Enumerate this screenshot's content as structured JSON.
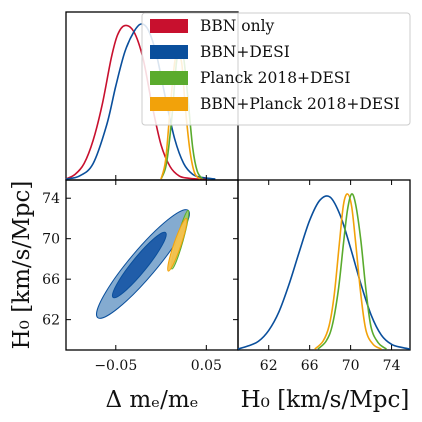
{
  "chart_data": {
    "type": "corner",
    "legend": {
      "placement": "top-right",
      "entries": [
        {
          "label": "BBN only",
          "color": "#c8102e"
        },
        {
          "label": "BBN+DESI",
          "color": "#0a4f9c"
        },
        {
          "label": "Planck 2018+DESI",
          "color": "#5aab2d"
        },
        {
          "label": "BBN+Planck 2018+DESI",
          "color": "#f2a20a"
        }
      ]
    },
    "params": {
      "dme": {
        "label": "Δ mₑ/mₑ",
        "range": [
          -0.105,
          0.085
        ],
        "ticks": [
          -0.05,
          0.05
        ],
        "tick_labels": [
          "−0.05",
          "0.05"
        ]
      },
      "H0": {
        "label": "H₀ [km/s/Mpc]",
        "range": [
          59.0,
          75.8
        ],
        "ticks": [
          62,
          66,
          70,
          74
        ],
        "tick_labels": [
          "62",
          "66",
          "70",
          "74"
        ]
      }
    },
    "panels": [
      {
        "id": "dme_1d",
        "type": "line",
        "xlabel": "",
        "ylabel": "",
        "series": [
          {
            "color": "#c8102e",
            "x": [
              -0.105,
              -0.095,
              -0.085,
              -0.075,
              -0.065,
              -0.055,
              -0.048,
              -0.04,
              -0.03,
              -0.02,
              -0.01,
              0.0,
              0.01,
              0.02,
              0.03,
              0.04,
              0.05
            ],
            "y": [
              0.0,
              0.03,
              0.1,
              0.25,
              0.48,
              0.78,
              0.93,
              0.99,
              0.95,
              0.78,
              0.48,
              0.22,
              0.08,
              0.02,
              0.005,
              0.0,
              0.0
            ]
          },
          {
            "color": "#0a4f9c",
            "x": [
              -0.105,
              -0.09,
              -0.075,
              -0.06,
              -0.05,
              -0.04,
              -0.03,
              -0.022,
              -0.014,
              -0.005,
              0.005,
              0.015,
              0.025,
              0.035,
              0.045,
              0.06
            ],
            "y": [
              0.0,
              0.02,
              0.1,
              0.35,
              0.6,
              0.82,
              0.95,
              1.0,
              0.96,
              0.8,
              0.52,
              0.26,
              0.1,
              0.03,
              0.01,
              0.0
            ]
          },
          {
            "color": "#5aab2d",
            "x": [
              0.0,
              0.006,
              0.012,
              0.017,
              0.021,
              0.025,
              0.03,
              0.035,
              0.04,
              0.046
            ],
            "y": [
              0.0,
              0.1,
              0.4,
              0.75,
              0.82,
              0.78,
              0.5,
              0.2,
              0.05,
              0.0
            ]
          },
          {
            "color": "#f2a20a",
            "x": [
              0.0,
              0.005,
              0.01,
              0.015,
              0.019,
              0.023,
              0.027,
              0.032,
              0.037,
              0.043
            ],
            "y": [
              0.0,
              0.12,
              0.45,
              0.75,
              0.8,
              0.74,
              0.45,
              0.18,
              0.04,
              0.0
            ]
          }
        ]
      },
      {
        "id": "h0_1d",
        "type": "line",
        "xlabel": "H₀ [km/s/Mpc]",
        "ylabel": "",
        "series": [
          {
            "color": "#0a4f9c",
            "x": [
              59.0,
              60.0,
              61.0,
              62.0,
              63.0,
              64.0,
              65.0,
              66.0,
              67.0,
              68.0,
              69.0,
              70.0,
              71.0,
              72.0,
              73.0,
              74.0,
              75.0,
              75.8
            ],
            "y": [
              0.0,
              0.02,
              0.05,
              0.12,
              0.24,
              0.42,
              0.63,
              0.83,
              0.96,
              0.98,
              0.86,
              0.65,
              0.42,
              0.22,
              0.09,
              0.03,
              0.01,
              0.0
            ]
          },
          {
            "color": "#f2a20a",
            "x": [
              66.5,
              67.3,
              67.9,
              68.4,
              68.9,
              69.3,
              69.7,
              70.1,
              70.5,
              71.0,
              71.5,
              72.2,
              73.0
            ],
            "y": [
              0.0,
              0.05,
              0.15,
              0.35,
              0.68,
              0.93,
              1.0,
              0.92,
              0.68,
              0.35,
              0.12,
              0.03,
              0.0
            ]
          },
          {
            "color": "#5aab2d",
            "x": [
              66.8,
              67.6,
              68.2,
              68.8,
              69.3,
              69.7,
              70.1,
              70.5,
              71.0,
              71.5,
              72.0,
              72.7,
              73.5
            ],
            "y": [
              0.0,
              0.05,
              0.15,
              0.38,
              0.68,
              0.9,
              1.0,
              0.93,
              0.7,
              0.38,
              0.14,
              0.04,
              0.0
            ]
          }
        ]
      },
      {
        "id": "dme_h0_2d",
        "type": "scatter",
        "xlabel": "Δ mₑ/mₑ",
        "ylabel": "H₀ [km/s/Mpc]",
        "contours": [
          {
            "color": "#0a4f9c",
            "level": "95%",
            "center": [
              -0.022,
              67.5
            ],
            "ellipse": [
              [
                -0.07,
                62.2
              ],
              [
                0.03,
                72.8
              ]
            ]
          },
          {
            "color": "#0a4f9c",
            "level": "68%",
            "center": [
              -0.022,
              67.5
            ],
            "ellipse": [
              [
                -0.053,
                64.2
              ],
              [
                0.005,
                70.6
              ]
            ]
          },
          {
            "color": "#5aab2d",
            "level": "95%",
            "center": [
              0.021,
              70.0
            ],
            "ellipse": [
              [
                0.012,
                67.0
              ],
              [
                0.03,
                72.8
              ]
            ]
          },
          {
            "color": "#f2a20a",
            "level": "95%",
            "center": [
              0.018,
              69.5
            ],
            "ellipse": [
              [
                0.008,
                66.8
              ],
              [
                0.028,
                72.0
              ]
            ]
          }
        ]
      }
    ],
    "grid": false
  }
}
